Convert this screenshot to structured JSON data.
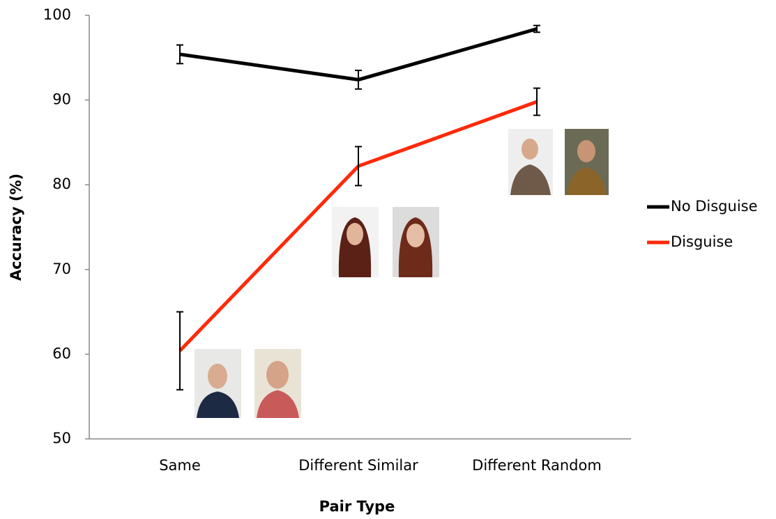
{
  "chart_data": {
    "type": "line",
    "x_label": "Pair Type",
    "y_label": "Accuracy (%)",
    "categories": [
      "Same",
      "Different Similar",
      "Different Random"
    ],
    "series": [
      {
        "name": "No Disguise",
        "color": "#000000",
        "values": [
          95.4,
          92.4,
          98.4
        ],
        "errors": [
          1.1,
          1.1,
          0.4
        ]
      },
      {
        "name": "Disguise",
        "color": "#ff2a0a",
        "values": [
          60.4,
          82.2,
          89.8
        ],
        "errors": [
          4.6,
          2.3,
          1.6
        ]
      }
    ],
    "ylim": [
      50,
      100
    ],
    "yticks": [
      50,
      60,
      70,
      80,
      90,
      100
    ],
    "grid": false,
    "legend": "right"
  }
}
